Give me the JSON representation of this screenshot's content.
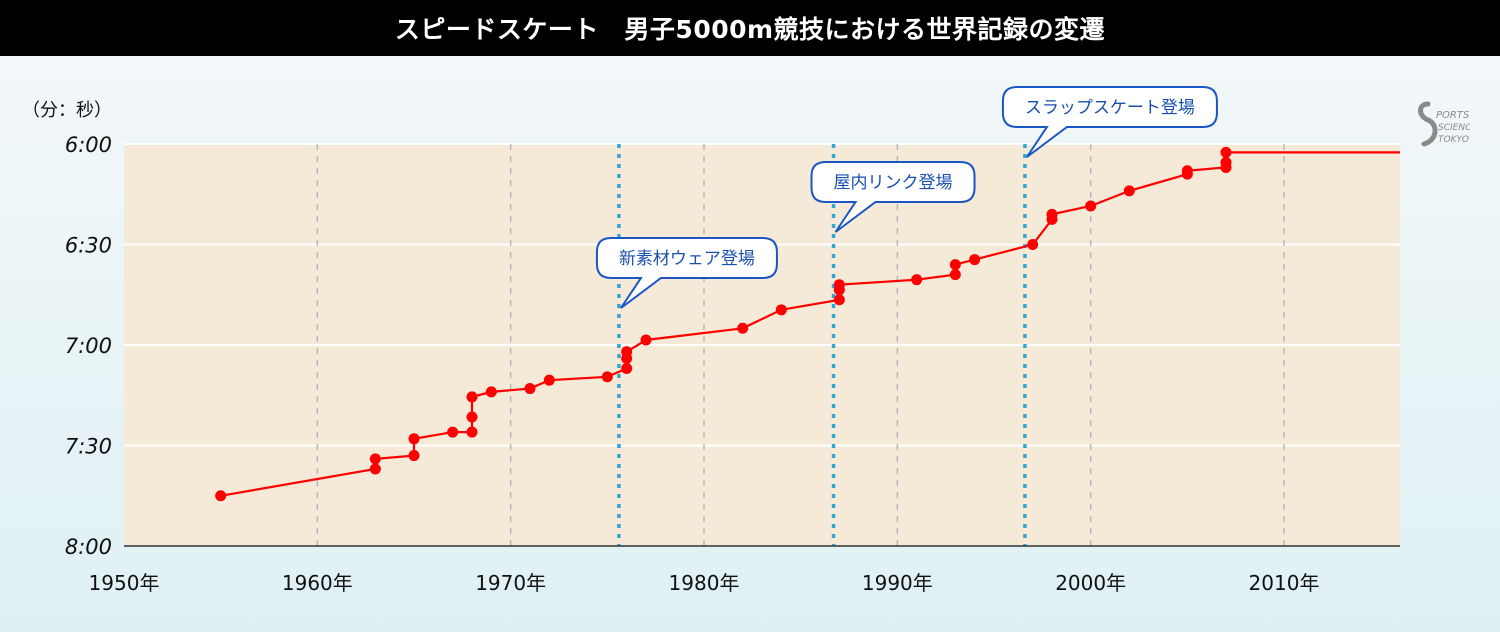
{
  "title": "スピードスケート　男子5000m競技における世界記録の変遷",
  "logo_label": "SPORTS",
  "chart_data": {
    "type": "line",
    "title": "スピードスケート　男子5000m競技における世界記録の変遷",
    "ylabel": "（分：秒）",
    "xlim": [
      1950,
      2016
    ],
    "ylim": [
      480,
      360
    ],
    "y_inverted": true,
    "grid": true,
    "x_ticks": [
      1950,
      1960,
      1970,
      1980,
      1990,
      2000,
      2010
    ],
    "x_tick_labels": [
      "1950年",
      "1960年",
      "1970年",
      "1980年",
      "1990年",
      "2000年",
      "2010年"
    ],
    "y_ticks": [
      360,
      390,
      420,
      450,
      480
    ],
    "y_tick_labels": [
      "6:00",
      "6:30",
      "7:00",
      "7:30",
      "8:00"
    ],
    "series": [
      {
        "name": "",
        "color": "#ff0000",
        "points": [
          {
            "x": 1955.0,
            "y": 465.0
          },
          {
            "x": 1963.0,
            "y": 457.0
          },
          {
            "x": 1963.0,
            "y": 454.0
          },
          {
            "x": 1965.0,
            "y": 453.0
          },
          {
            "x": 1965.0,
            "y": 448.0
          },
          {
            "x": 1967.0,
            "y": 446.0
          },
          {
            "x": 1968.0,
            "y": 446.0
          },
          {
            "x": 1968.0,
            "y": 441.5
          },
          {
            "x": 1968.0,
            "y": 435.5
          },
          {
            "x": 1969.0,
            "y": 434.0
          },
          {
            "x": 1971.0,
            "y": 433.0
          },
          {
            "x": 1972.0,
            "y": 430.5
          },
          {
            "x": 1975.0,
            "y": 429.5
          },
          {
            "x": 1976.0,
            "y": 427.0
          },
          {
            "x": 1976.0,
            "y": 424.0
          },
          {
            "x": 1976.0,
            "y": 422.0
          },
          {
            "x": 1977.0,
            "y": 418.5
          },
          {
            "x": 1982.0,
            "y": 415.0
          },
          {
            "x": 1984.0,
            "y": 409.5
          },
          {
            "x": 1987.0,
            "y": 406.5
          },
          {
            "x": 1987.0,
            "y": 403.5
          },
          {
            "x": 1987.0,
            "y": 402.0
          },
          {
            "x": 1991.0,
            "y": 400.5
          },
          {
            "x": 1993.0,
            "y": 399.0
          },
          {
            "x": 1993.0,
            "y": 396.0
          },
          {
            "x": 1994.0,
            "y": 394.5
          },
          {
            "x": 1997.0,
            "y": 390.0
          },
          {
            "x": 1998.0,
            "y": 382.5
          },
          {
            "x": 1998.0,
            "y": 381.0
          },
          {
            "x": 2000.0,
            "y": 378.5
          },
          {
            "x": 2002.0,
            "y": 374.0
          },
          {
            "x": 2005.0,
            "y": 369.0
          },
          {
            "x": 2005.0,
            "y": 368.0
          },
          {
            "x": 2007.0,
            "y": 367.0
          },
          {
            "x": 2007.0,
            "y": 365.5
          },
          {
            "x": 2007.0,
            "y": 362.5
          },
          {
            "x": 2016.0,
            "y": 362.5
          }
        ],
        "endpoint_no_marker": true
      }
    ],
    "event_lines": [
      {
        "x": 1975.6,
        "label": "新素材ウェア登場"
      },
      {
        "x": 1986.7,
        "label": "屋内リンク登場"
      },
      {
        "x": 1996.6,
        "label": "スラップスケート登場"
      }
    ],
    "colors": {
      "plot_background": "#f5e9d7",
      "line": "#ff0000",
      "event_line": "#2fa6d4",
      "callout_border": "#1a56c4",
      "callout_text": "#1a4fb0",
      "minor_grid": "#b8b8c4"
    }
  }
}
